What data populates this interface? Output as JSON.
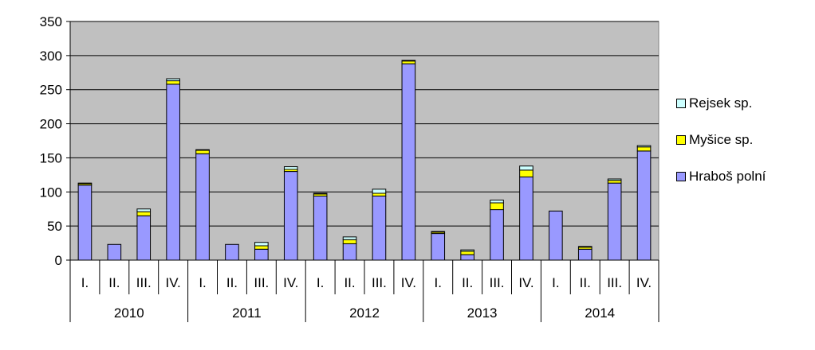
{
  "chart_data": {
    "type": "bar",
    "stacked": true,
    "groups": [
      "2010",
      "2011",
      "2012",
      "2013",
      "2014"
    ],
    "quarters": [
      "I.",
      "II.",
      "III.",
      "IV."
    ],
    "ylim": [
      0,
      350
    ],
    "yticks": [
      0,
      50,
      100,
      150,
      200,
      250,
      300,
      350
    ],
    "grid": true,
    "legend_position": "right",
    "plot_background": "#c0c0c0",
    "series": [
      {
        "name": "Hraboš polní",
        "color": "#9999ff",
        "values": [
          110,
          23,
          65,
          258,
          156,
          23,
          16,
          130,
          94,
          24,
          94,
          288,
          39,
          8,
          74,
          122,
          72,
          16,
          113,
          160
        ]
      },
      {
        "name": "Myšice sp.",
        "color": "#ffff00",
        "values": [
          2,
          0,
          6,
          5,
          5,
          0,
          5,
          3,
          3,
          6,
          4,
          4,
          2,
          5,
          10,
          10,
          0,
          3,
          4,
          6
        ]
      },
      {
        "name": "Rejsek sp.",
        "color": "#ccffff",
        "values": [
          1,
          0,
          4,
          3,
          1,
          0,
          5,
          4,
          1,
          4,
          6,
          1,
          1,
          2,
          4,
          6,
          0,
          1,
          2,
          2
        ]
      }
    ],
    "xlabel": "",
    "ylabel": "",
    "title": ""
  }
}
